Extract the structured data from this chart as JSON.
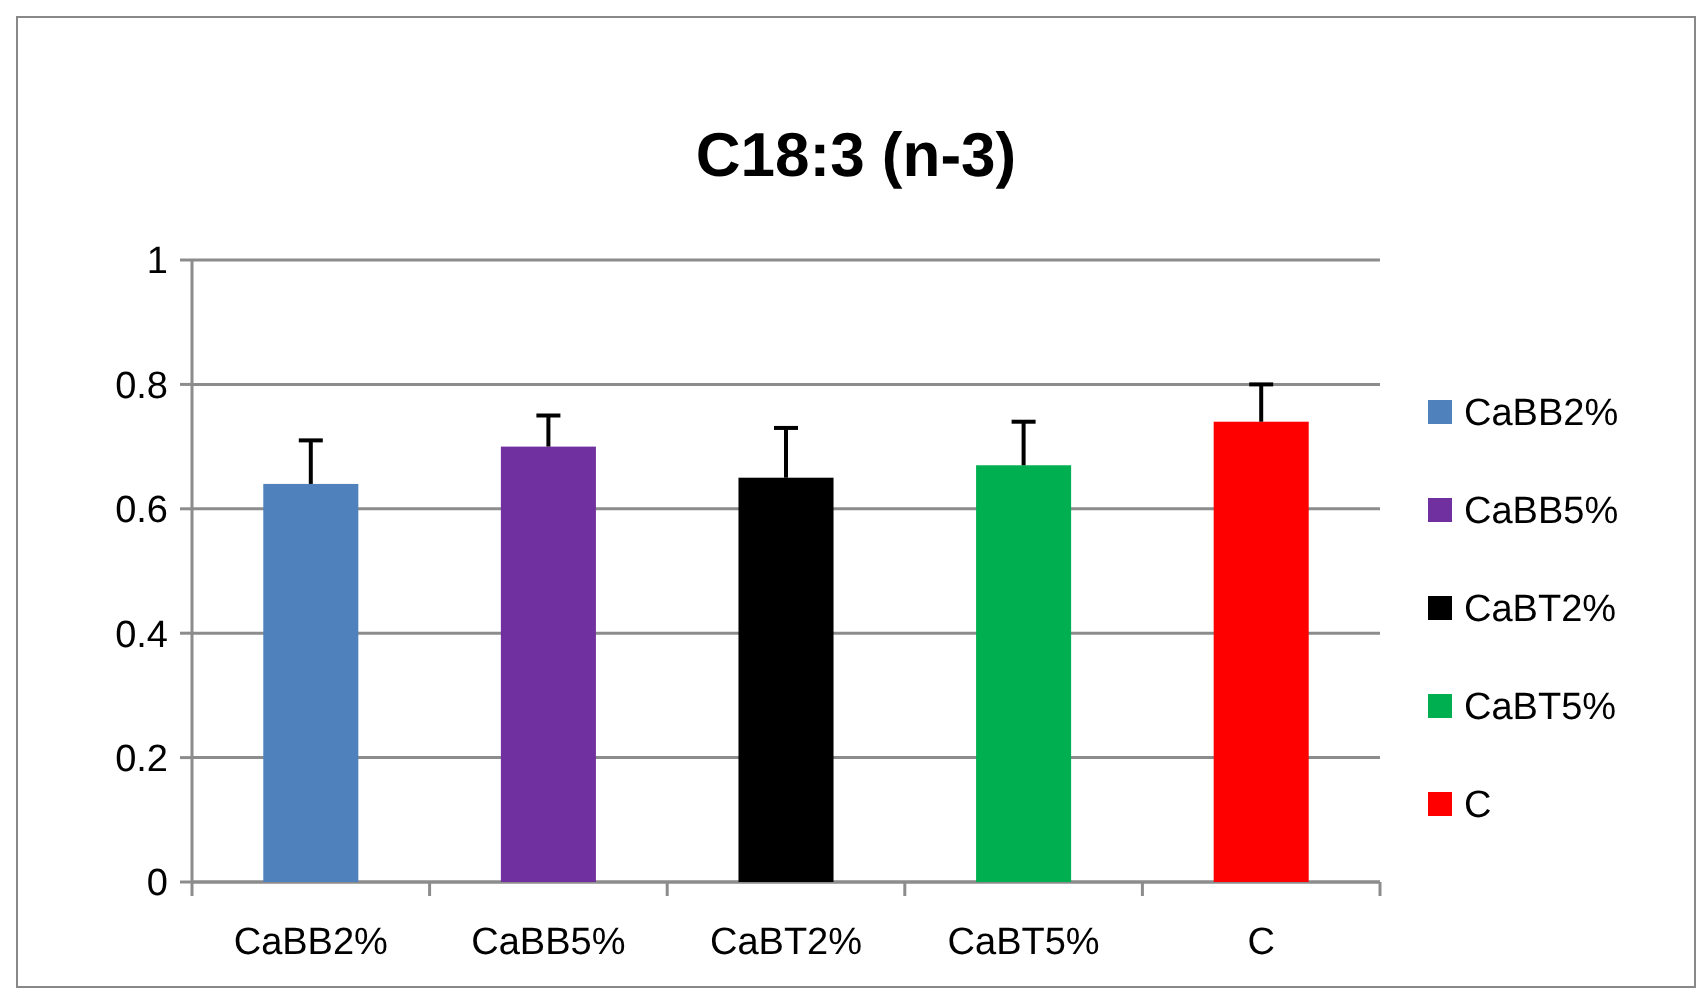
{
  "chart_data": {
    "type": "bar",
    "title": "C18:3 (n-3)",
    "categories": [
      "CaBB2%",
      "CaBB5%",
      "CaBT2%",
      "CaBT5%",
      "C"
    ],
    "series": [
      {
        "name": "CaBB2%",
        "color": "#4f81bd",
        "values": [
          0.64,
          null,
          null,
          null,
          null
        ],
        "errors": [
          [
            0.64,
            0.71
          ],
          null,
          null,
          null,
          null
        ]
      },
      {
        "name": "CaBB5%",
        "color": "#7030a0",
        "values": [
          null,
          0.7,
          null,
          null,
          null
        ],
        "errors": [
          null,
          [
            0.7,
            0.75
          ],
          null,
          null,
          null
        ]
      },
      {
        "name": "CaBT2%",
        "color": "#000000",
        "values": [
          null,
          null,
          0.65,
          null,
          null
        ],
        "errors": [
          null,
          null,
          [
            0.65,
            0.73
          ],
          null,
          null
        ]
      },
      {
        "name": "CaBT5%",
        "color": "#00b050",
        "values": [
          null,
          null,
          null,
          0.67,
          null
        ],
        "errors": [
          null,
          null,
          null,
          [
            0.67,
            0.74
          ],
          null
        ]
      },
      {
        "name": "C",
        "color": "#ff0000",
        "values": [
          null,
          null,
          null,
          null,
          0.74
        ],
        "errors": [
          null,
          null,
          null,
          null,
          [
            0.74,
            0.8
          ]
        ]
      }
    ],
    "ylim": [
      0,
      1
    ],
    "yticks": [
      0,
      0.2,
      0.4,
      0.6,
      0.8,
      1
    ],
    "grid": "y",
    "legend": "right"
  }
}
